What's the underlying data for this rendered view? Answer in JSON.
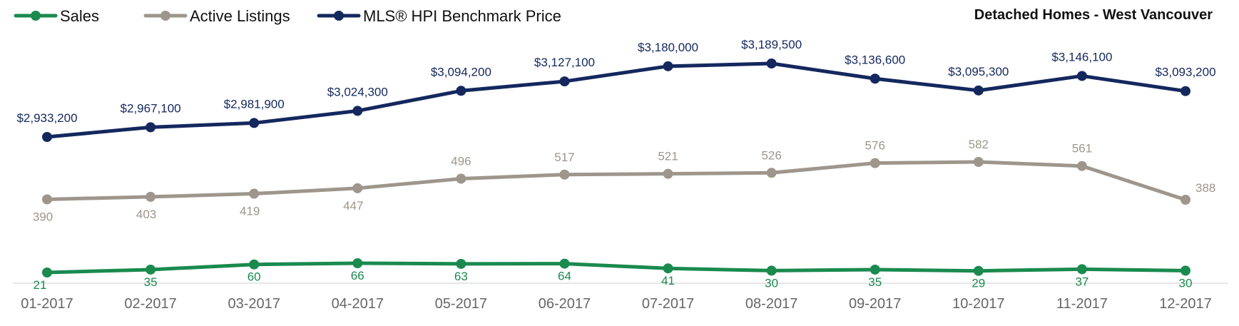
{
  "chart_data": {
    "type": "line",
    "title": "Detached Homes - West Vancouver",
    "categories": [
      "01-2017",
      "02-2017",
      "03-2017",
      "04-2017",
      "05-2017",
      "06-2017",
      "07-2017",
      "08-2017",
      "09-2017",
      "10-2017",
      "11-2017",
      "12-2017"
    ],
    "legend_position": "top-left",
    "grid": false,
    "series": [
      {
        "name": "Sales",
        "color": "#1a8a4f",
        "values": [
          21,
          35,
          60,
          66,
          63,
          64,
          41,
          30,
          35,
          29,
          37,
          30
        ],
        "labels": [
          "21",
          "35",
          "60",
          "66",
          "63",
          "64",
          "41",
          "30",
          "35",
          "29",
          "37",
          "30"
        ]
      },
      {
        "name": "Active Listings",
        "color": "#9e968c",
        "values": [
          390,
          403,
          419,
          447,
          496,
          517,
          521,
          526,
          576,
          582,
          561,
          388
        ],
        "labels": [
          "390",
          "403",
          "419",
          "447",
          "496",
          "517",
          "521",
          "526",
          "576",
          "582",
          "561",
          "388"
        ]
      },
      {
        "name": "MLS® HPI Benchmark Price",
        "color": "#14285e",
        "values": [
          2933200,
          2967100,
          2981900,
          3024300,
          3094200,
          3127100,
          3180000,
          3189500,
          3136600,
          3095300,
          3146100,
          3093200
        ],
        "labels": [
          "$2,933,200",
          "$2,967,100",
          "$2,981,900",
          "$3,024,300",
          "$3,094,200",
          "$3,127,100",
          "$3,180,000",
          "$3,189,500",
          "$3,136,600",
          "$3,095,300",
          "$3,146,100",
          "$3,093,200"
        ]
      }
    ]
  }
}
